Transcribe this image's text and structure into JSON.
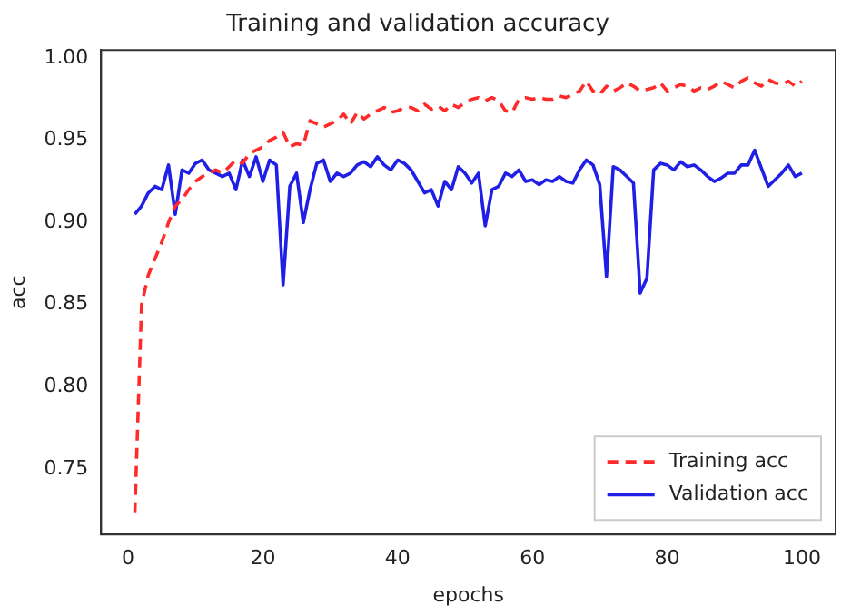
{
  "chart_data": {
    "type": "line",
    "title": "Training and validation accuracy",
    "xlabel": "epochs",
    "ylabel": "acc",
    "x": [
      1,
      2,
      3,
      4,
      5,
      6,
      7,
      8,
      9,
      10,
      11,
      12,
      13,
      14,
      15,
      16,
      17,
      18,
      19,
      20,
      21,
      22,
      23,
      24,
      25,
      26,
      27,
      28,
      29,
      30,
      31,
      32,
      33,
      34,
      35,
      36,
      37,
      38,
      39,
      40,
      41,
      42,
      43,
      44,
      45,
      46,
      47,
      48,
      49,
      50,
      51,
      52,
      53,
      54,
      55,
      56,
      57,
      58,
      59,
      60,
      61,
      62,
      63,
      64,
      65,
      66,
      67,
      68,
      69,
      70,
      71,
      72,
      73,
      74,
      75,
      76,
      77,
      78,
      79,
      80,
      81,
      82,
      83,
      84,
      85,
      86,
      87,
      88,
      89,
      90,
      91,
      92,
      93,
      94,
      95,
      96,
      97,
      98,
      99,
      100
    ],
    "xlim": [
      -4,
      105
    ],
    "xticks": [
      0,
      20,
      40,
      60,
      80,
      100
    ],
    "ylim": [
      0.71,
      1.005
    ],
    "yticks": [
      {
        "value": 0.75,
        "label": "0.75"
      },
      {
        "value": 0.8,
        "label": "0.80"
      },
      {
        "value": 0.85,
        "label": "0.85"
      },
      {
        "value": 0.9,
        "label": "0.90"
      },
      {
        "value": 0.95,
        "label": "0.95"
      },
      {
        "value": 1.0,
        "label": "1.00"
      }
    ],
    "grid": false,
    "legend": "bottom right",
    "series": [
      {
        "name": "Training acc",
        "color": "#ff2a2a",
        "line_style": "dashed",
        "values": [
          0.723,
          0.85,
          0.868,
          0.878,
          0.888,
          0.9,
          0.91,
          0.914,
          0.92,
          0.925,
          0.928,
          0.93,
          0.932,
          0.93,
          0.934,
          0.938,
          0.936,
          0.942,
          0.944,
          0.946,
          0.95,
          0.952,
          0.955,
          0.946,
          0.948,
          0.947,
          0.962,
          0.96,
          0.958,
          0.96,
          0.962,
          0.966,
          0.96,
          0.967,
          0.963,
          0.966,
          0.968,
          0.97,
          0.967,
          0.968,
          0.97,
          0.97,
          0.968,
          0.972,
          0.969,
          0.971,
          0.968,
          0.972,
          0.97,
          0.973,
          0.975,
          0.976,
          0.974,
          0.976,
          0.974,
          0.968,
          0.967,
          0.975,
          0.976,
          0.975,
          0.976,
          0.975,
          0.975,
          0.977,
          0.976,
          0.978,
          0.98,
          0.986,
          0.98,
          0.978,
          0.983,
          0.98,
          0.982,
          0.985,
          0.983,
          0.98,
          0.981,
          0.982,
          0.985,
          0.98,
          0.982,
          0.984,
          0.983,
          0.98,
          0.982,
          0.981,
          0.983,
          0.986,
          0.984,
          0.982,
          0.986,
          0.988,
          0.985,
          0.983,
          0.987,
          0.985,
          0.984,
          0.986,
          0.983,
          0.986
        ]
      },
      {
        "name": "Validation acc",
        "color": "#1f1fe6",
        "line_style": "solid",
        "values": [
          0.905,
          0.91,
          0.918,
          0.922,
          0.92,
          0.935,
          0.905,
          0.932,
          0.93,
          0.936,
          0.938,
          0.932,
          0.93,
          0.928,
          0.93,
          0.92,
          0.938,
          0.928,
          0.94,
          0.925,
          0.938,
          0.935,
          0.862,
          0.922,
          0.93,
          0.9,
          0.92,
          0.936,
          0.938,
          0.925,
          0.93,
          0.928,
          0.93,
          0.935,
          0.937,
          0.934,
          0.94,
          0.935,
          0.932,
          0.938,
          0.936,
          0.932,
          0.925,
          0.918,
          0.92,
          0.91,
          0.925,
          0.92,
          0.934,
          0.93,
          0.924,
          0.93,
          0.898,
          0.92,
          0.922,
          0.93,
          0.928,
          0.932,
          0.925,
          0.926,
          0.923,
          0.926,
          0.925,
          0.928,
          0.925,
          0.924,
          0.932,
          0.938,
          0.935,
          0.923,
          0.867,
          0.934,
          0.932,
          0.928,
          0.924,
          0.857,
          0.866,
          0.932,
          0.936,
          0.935,
          0.932,
          0.937,
          0.934,
          0.935,
          0.932,
          0.928,
          0.925,
          0.927,
          0.93,
          0.93,
          0.935,
          0.935,
          0.944,
          0.933,
          0.922,
          0.926,
          0.93,
          0.935,
          0.928,
          0.93
        ]
      }
    ]
  }
}
